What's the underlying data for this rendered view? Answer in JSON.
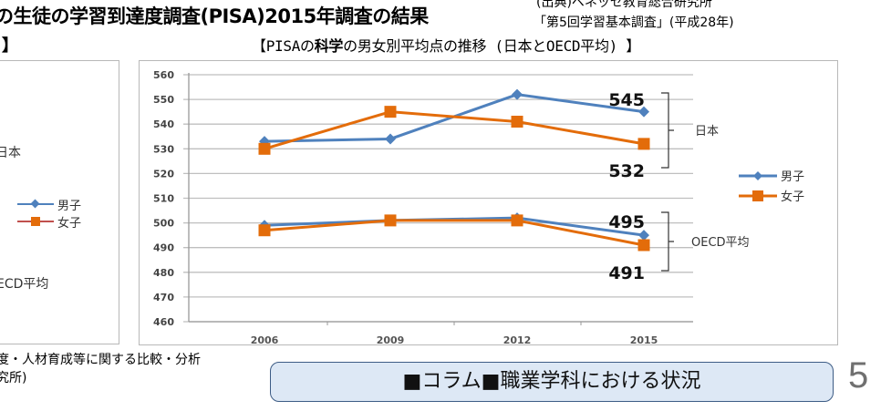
{
  "header": {
    "title": "の生徒の学習到達度調査(PISA)2015年調査の結果",
    "source_line1": "(出典)ベネッセ教育総合研究所",
    "source_line2": "「第5回学習基本調査」(平成28年)",
    "left_section_title": "】",
    "chart_title_prefix": "【PISAの",
    "chart_title_bold": "科学",
    "chart_title_suffix": "の男女別平均点の推移 (日本とOECD平均) 】"
  },
  "left_panel": {
    "label_japan": "日本",
    "legend_male": "男子",
    "legend_female": "女子",
    "label_oecd": "ECD平均"
  },
  "footer": {
    "footnote_line1": "度・人材育成等に関する比較・分析",
    "footnote_line2": "究所)",
    "column_label": "■コラム■職業学科における状況",
    "page_number": "5"
  },
  "colors": {
    "male": "#4f81bd",
    "female": "#e36c0a",
    "grid": "#bfbfbf",
    "column_box_bg": "#dde8f5",
    "column_box_border": "#3d5c85"
  },
  "chart_data": {
    "type": "line",
    "title": "PISAの科学の男女別平均点の推移(日本とOECD平均)",
    "xlabel": "",
    "ylabel": "",
    "categories": [
      "2006",
      "2009",
      "2012",
      "2015"
    ],
    "ylim": [
      460,
      560
    ],
    "yticks": [
      460,
      470,
      480,
      490,
      500,
      510,
      520,
      530,
      540,
      550,
      560
    ],
    "grid": true,
    "legend_position": "right",
    "legend": [
      "男子",
      "女子"
    ],
    "series": [
      {
        "name": "日本 男子",
        "group": "日本",
        "legend": "男子",
        "values": [
          533,
          534,
          552,
          545
        ]
      },
      {
        "name": "日本 女子",
        "group": "日本",
        "legend": "女子",
        "values": [
          530,
          545,
          541,
          532
        ]
      },
      {
        "name": "OECD平均 男子",
        "group": "OECD平均",
        "legend": "男子",
        "values": [
          499,
          501,
          502,
          495
        ]
      },
      {
        "name": "OECD平均 女子",
        "group": "OECD平均",
        "legend": "女子",
        "values": [
          497,
          501,
          501,
          491
        ]
      }
    ],
    "annotations": [
      {
        "text": "545",
        "target": "日本 男子 2015"
      },
      {
        "text": "532",
        "target": "日本 女子 2015"
      },
      {
        "text": "495",
        "target": "OECD平均 男子 2015"
      },
      {
        "text": "491",
        "target": "OECD平均 女子 2015"
      },
      {
        "text": "日本",
        "type": "bracket-label"
      },
      {
        "text": "OECD平均",
        "type": "bracket-label"
      }
    ]
  }
}
